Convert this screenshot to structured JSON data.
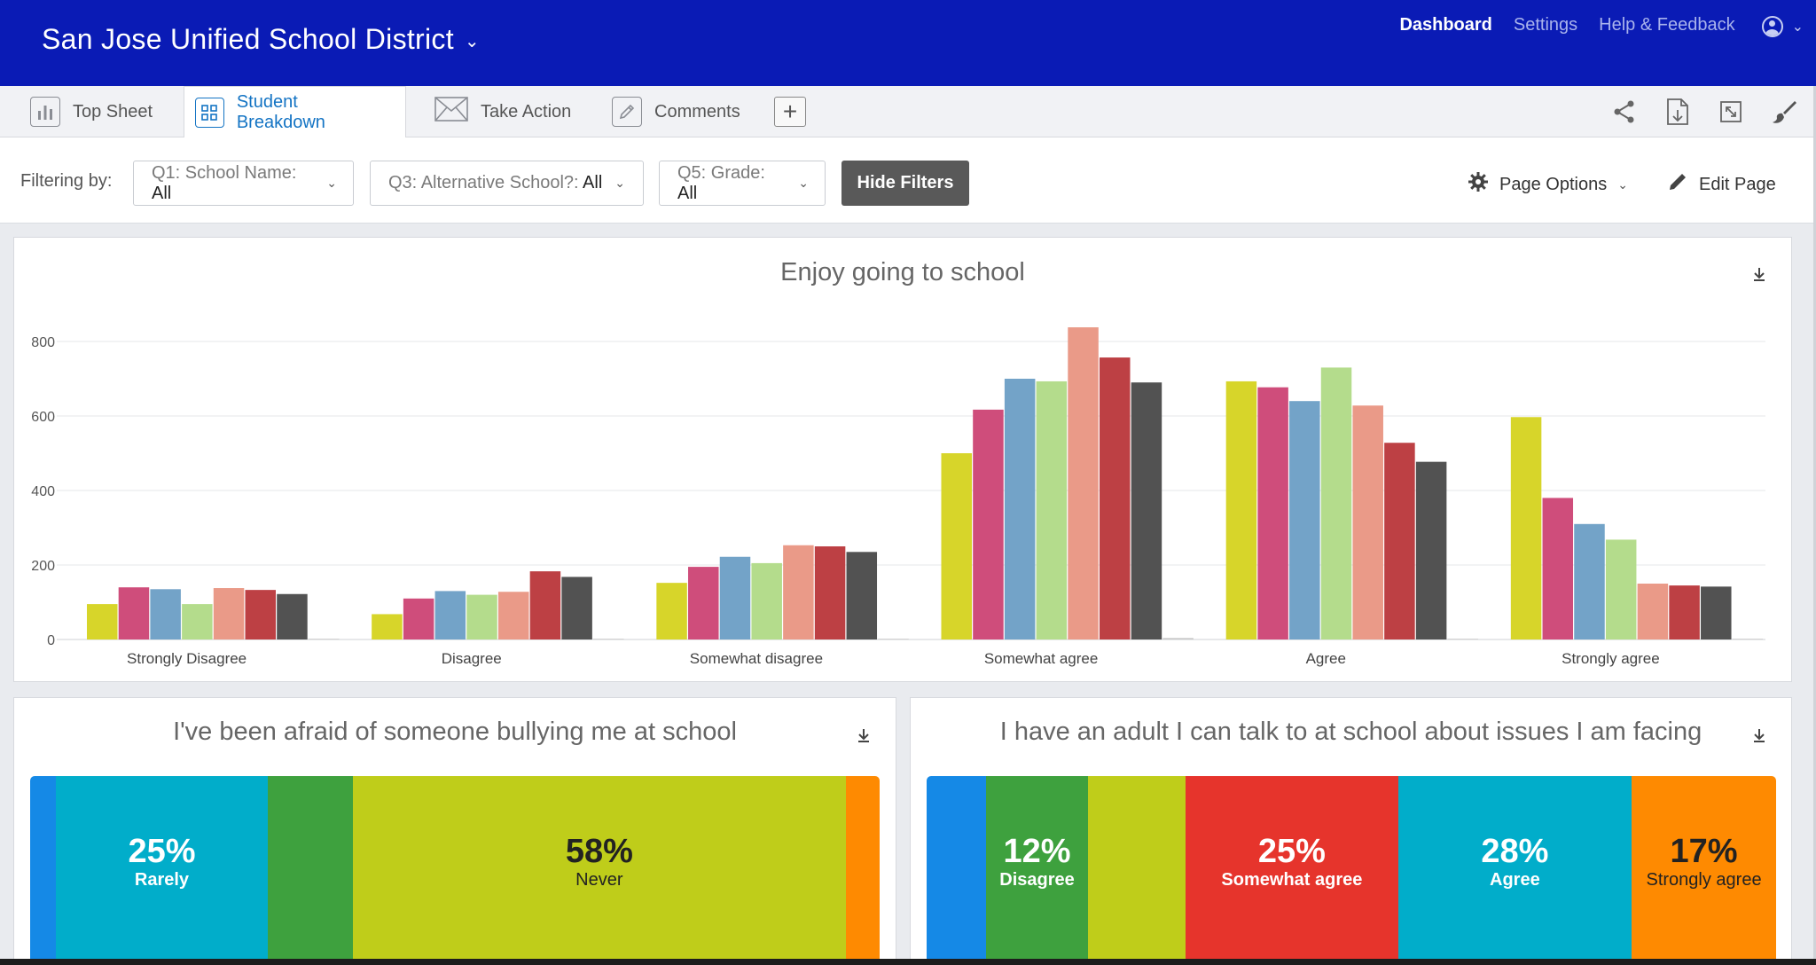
{
  "header": {
    "org_name": "San Jose Unified School District",
    "nav": [
      {
        "label": "Dashboard",
        "active": true
      },
      {
        "label": "Settings",
        "active": false
      },
      {
        "label": "Help & Feedback",
        "active": false
      }
    ]
  },
  "tabs": [
    {
      "label": "Top Sheet",
      "icon": "bar-chart-icon",
      "active": false
    },
    {
      "label": "Student Breakdown",
      "icon": "grid-icon",
      "active": true
    },
    {
      "label": "Take Action",
      "icon": "envelope-icon",
      "active": false
    },
    {
      "label": "Comments",
      "icon": "pencil-icon",
      "active": false
    }
  ],
  "tools": [
    "share-icon",
    "export-page-icon",
    "fullscreen-icon",
    "paint-brush-icon"
  ],
  "filters": {
    "label": "Filtering by:",
    "items": [
      {
        "prefix": "Q1: School Name: ",
        "value": "All"
      },
      {
        "prefix": "Q3: Alternative School?: ",
        "value": "All"
      },
      {
        "prefix": "Q5: Grade: ",
        "value": "All"
      }
    ],
    "hide_button": "Hide Filters",
    "page_options": "Page Options",
    "edit_page": "Edit Page"
  },
  "colors": {
    "header_bg": "#0a1bb5",
    "active_tab": "#1474c4",
    "series": [
      "#d7d52a",
      "#cf4d7b",
      "#73a3c8",
      "#b4dc8c",
      "#ea9a88",
      "#bd4044",
      "#525252",
      "#c9c9c9"
    ]
  },
  "chart_data": {
    "type": "bar",
    "title": "Enjoy going to school",
    "categories": [
      "Strongly Disagree",
      "Disagree",
      "Somewhat disagree",
      "Somewhat agree",
      "Agree",
      "Strongly agree"
    ],
    "ylim": [
      0,
      800
    ],
    "yticks": [
      0,
      200,
      400,
      600,
      800
    ],
    "grid": true,
    "series": [
      {
        "values": [
          95,
          68,
          152,
          500,
          693,
          597
        ]
      },
      {
        "values": [
          140,
          110,
          195,
          617,
          677,
          380
        ]
      },
      {
        "values": [
          135,
          130,
          222,
          700,
          640,
          310
        ]
      },
      {
        "values": [
          95,
          120,
          205,
          693,
          730,
          268
        ]
      },
      {
        "values": [
          138,
          128,
          253,
          838,
          628,
          150
        ]
      },
      {
        "values": [
          133,
          183,
          250,
          757,
          528,
          145
        ]
      },
      {
        "values": [
          122,
          168,
          235,
          690,
          477,
          142
        ]
      },
      {
        "values": [
          2,
          2,
          2,
          4,
          2,
          2
        ]
      }
    ]
  },
  "bullying": {
    "title": "I've been afraid of someone bullying me at school",
    "segments": [
      {
        "pct": 3,
        "label": "",
        "pct_text": "",
        "color": "#1589e6",
        "dark": false
      },
      {
        "pct": 25,
        "label": "Rarely",
        "pct_text": "25%",
        "color": "#01adca",
        "dark": false
      },
      {
        "pct": 10,
        "label": "",
        "pct_text": "",
        "color": "#3ea13e",
        "dark": false
      },
      {
        "pct": 58,
        "label": "Never",
        "pct_text": "58%",
        "color": "#bfcd1a",
        "dark": true
      },
      {
        "pct": 4,
        "label": "",
        "pct_text": "",
        "color": "#fe8a01",
        "dark": false
      }
    ]
  },
  "adult": {
    "title": "I have an adult I can talk to at school about issues I am facing",
    "segments": [
      {
        "pct": 7,
        "label": "",
        "pct_text": "",
        "color": "#1589e6",
        "dark": false
      },
      {
        "pct": 12,
        "label": "Disagree",
        "pct_text": "12%",
        "color": "#3ea13e",
        "dark": false
      },
      {
        "pct": 11.5,
        "label": "",
        "pct_text": "",
        "color": "#bfcd1a",
        "dark": false
      },
      {
        "pct": 25,
        "label": "Somewhat agree",
        "pct_text": "25%",
        "color": "#e6342c",
        "dark": false
      },
      {
        "pct": 27.5,
        "label": "Agree",
        "pct_text": "28%",
        "color": "#01adca",
        "dark": false
      },
      {
        "pct": 17,
        "label": "Strongly agree",
        "pct_text": "17%",
        "color": "#fe8a01",
        "dark": true
      }
    ]
  }
}
